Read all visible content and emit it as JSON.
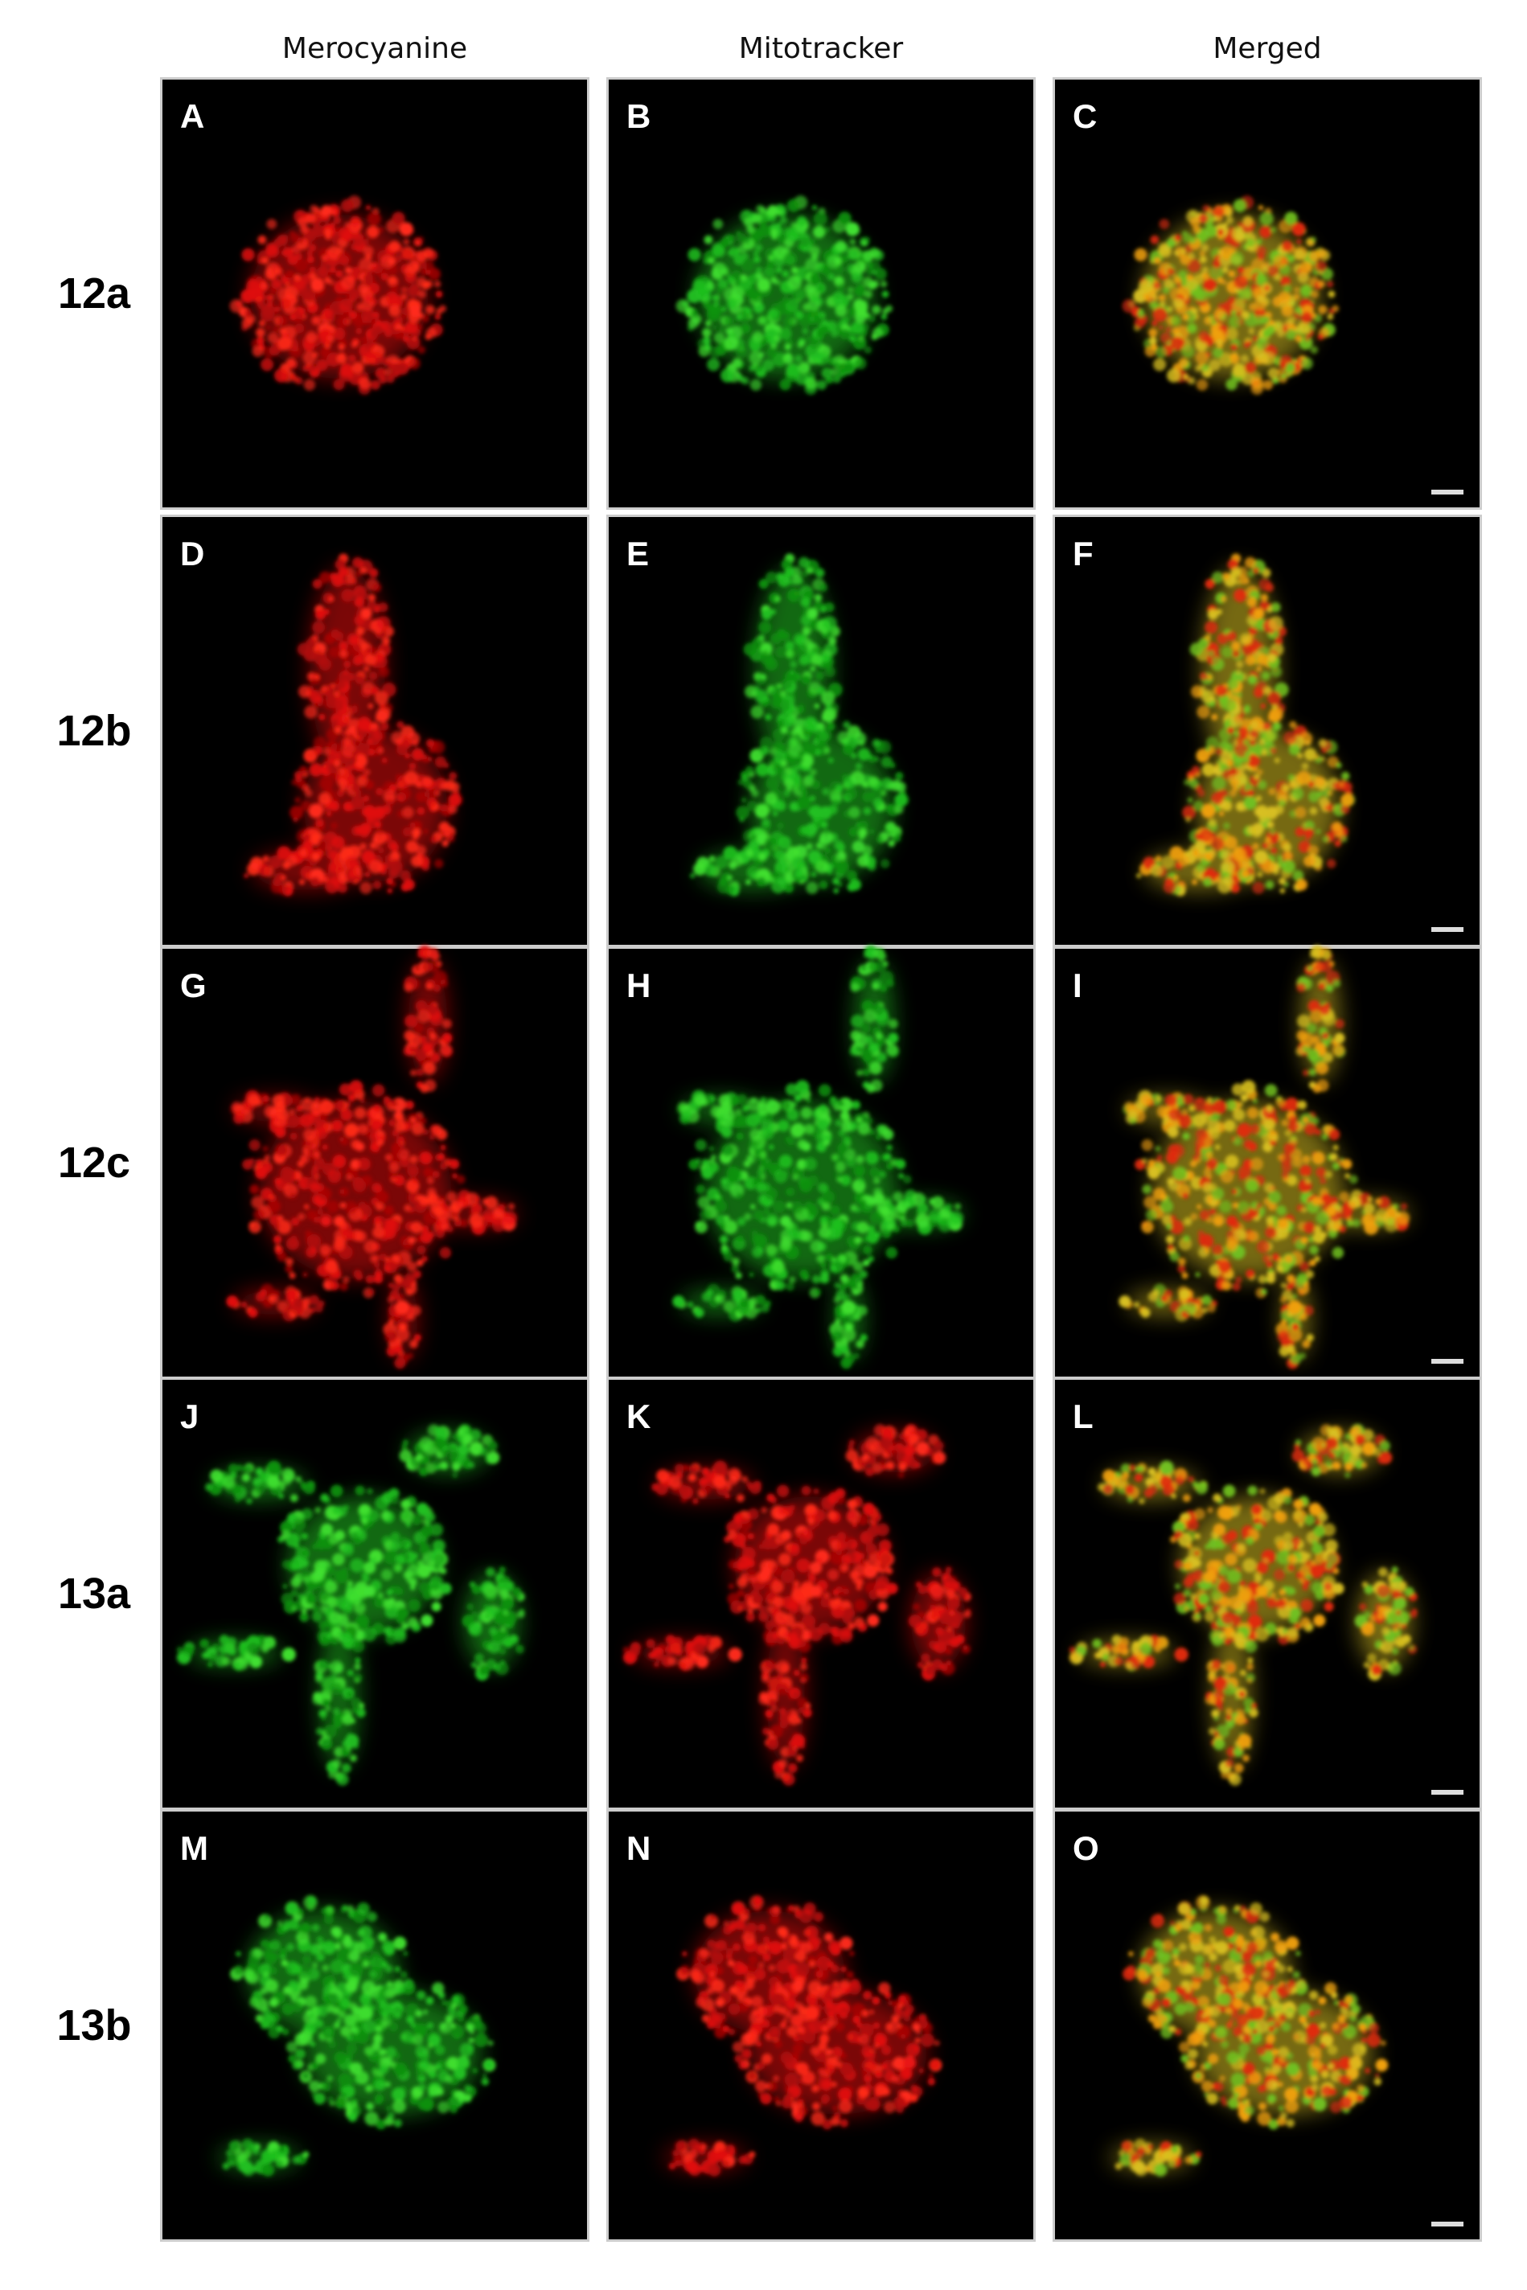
{
  "column_headers": [
    "Merocyanine",
    "Mitotracker",
    "Merged"
  ],
  "rows": [
    {
      "label": "12a",
      "panels": [
        "A",
        "B",
        "C"
      ]
    },
    {
      "label": "12b",
      "panels": [
        "D",
        "E",
        "F"
      ]
    },
    {
      "label": "12c",
      "panels": [
        "G",
        "H",
        "I"
      ]
    },
    {
      "label": "13a",
      "panels": [
        "J",
        "K",
        "L"
      ]
    },
    {
      "label": "13b",
      "panels": [
        "M",
        "N",
        "O"
      ]
    }
  ]
}
